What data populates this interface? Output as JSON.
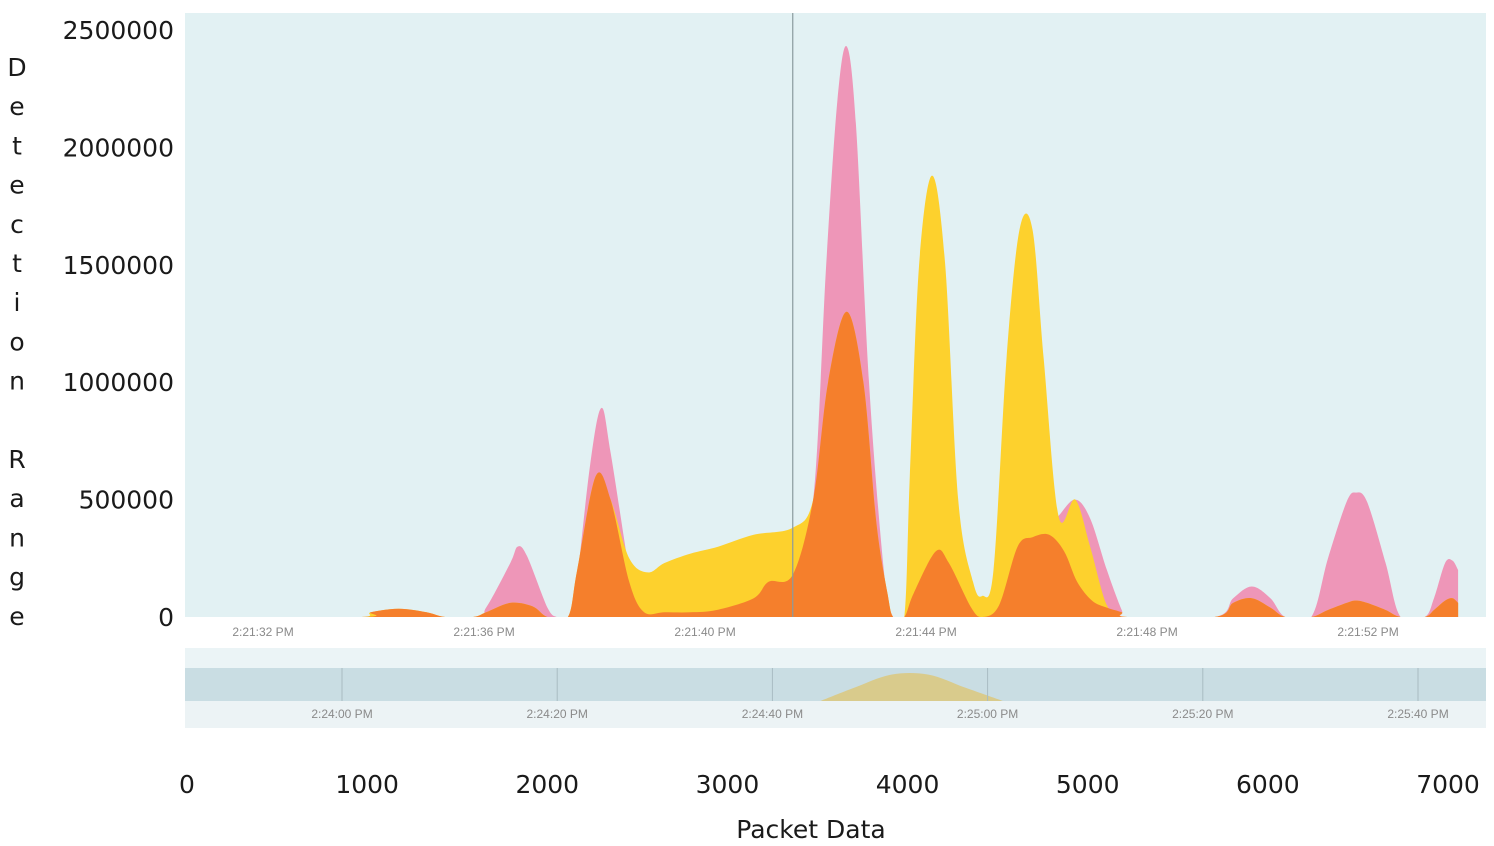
{
  "chart_data": {
    "type": "area",
    "title": "",
    "xlabel": "Packet Data",
    "ylabel": "Detection Range",
    "xlim": [
      0,
      7000
    ],
    "ylim": [
      0,
      2500000
    ],
    "x_ticks": [
      0,
      1000,
      2000,
      3000,
      4000,
      5000,
      6000,
      7000
    ],
    "x_tick_labels": [
      "0",
      "1000",
      "2000",
      "3000",
      "4000",
      "5000",
      "6000",
      "7000"
    ],
    "y_ticks": [
      0,
      500000,
      1000000,
      1500000,
      2000000,
      2500000
    ],
    "y_tick_labels": [
      "0",
      "500000",
      "1000000",
      "1500000",
      "2000000",
      "2500000"
    ],
    "plot_background": "#e2f1f3",
    "time_axis_labels": [
      "2:21:32 PM",
      "2:21:36 PM",
      "2:21:40 PM",
      "2:21:44 PM",
      "2:21:48 PM",
      "2:21:52 PM"
    ],
    "navigator_time_labels": [
      "2:24:00 PM",
      "2:24:20 PM",
      "2:24:40 PM",
      "2:25:00 PM",
      "2:25:20 PM",
      "2:25:40 PM"
    ],
    "cursor_x": 3270,
    "series": [
      {
        "color": "#ee96b8",
        "points": [
          [
            0,
            0
          ],
          [
            950,
            0
          ],
          [
            1550,
            0
          ],
          [
            1620,
            40000
          ],
          [
            1750,
            230000
          ],
          [
            1790,
            300000
          ],
          [
            1840,
            260000
          ],
          [
            1950,
            40000
          ],
          [
            2000,
            0
          ],
          [
            2060,
            0
          ],
          [
            2100,
            100000
          ],
          [
            2180,
            650000
          ],
          [
            2240,
            890000
          ],
          [
            2290,
            700000
          ],
          [
            2400,
            150000
          ],
          [
            2450,
            0
          ],
          [
            2800,
            0
          ],
          [
            2960,
            0
          ],
          [
            3100,
            50000
          ],
          [
            3270,
            180000
          ],
          [
            3380,
            500000
          ],
          [
            3450,
            1500000
          ],
          [
            3510,
            2200000
          ],
          [
            3560,
            2430000
          ],
          [
            3610,
            2100000
          ],
          [
            3680,
            1000000
          ],
          [
            3760,
            200000
          ],
          [
            3810,
            0
          ],
          [
            3870,
            0
          ],
          [
            3960,
            100000
          ],
          [
            4040,
            280000
          ],
          [
            4110,
            230000
          ],
          [
            4230,
            40000
          ],
          [
            4290,
            0
          ],
          [
            4400,
            100000
          ],
          [
            4510,
            280000
          ],
          [
            4600,
            330000
          ],
          [
            4700,
            430000
          ],
          [
            4790,
            500000
          ],
          [
            4870,
            420000
          ],
          [
            4960,
            200000
          ],
          [
            5040,
            30000
          ],
          [
            5070,
            0
          ],
          [
            5540,
            0
          ],
          [
            5640,
            80000
          ],
          [
            5740,
            130000
          ],
          [
            5840,
            80000
          ],
          [
            5920,
            0
          ],
          [
            6060,
            0
          ],
          [
            6150,
            250000
          ],
          [
            6250,
            490000
          ],
          [
            6300,
            530000
          ],
          [
            6360,
            490000
          ],
          [
            6460,
            230000
          ],
          [
            6540,
            0
          ],
          [
            6670,
            0
          ],
          [
            6720,
            80000
          ],
          [
            6780,
            230000
          ],
          [
            6820,
            240000
          ],
          [
            6850,
            200000
          ]
        ]
      },
      {
        "color": "#fdd12d",
        "points": [
          [
            0,
            0
          ],
          [
            470,
            0
          ],
          [
            950,
            0
          ],
          [
            1000,
            20000
          ],
          [
            1150,
            35000
          ],
          [
            1300,
            20000
          ],
          [
            1400,
            0
          ],
          [
            1550,
            0
          ],
          [
            1620,
            20000
          ],
          [
            1750,
            60000
          ],
          [
            1870,
            45000
          ],
          [
            1950,
            0
          ],
          [
            2060,
            0
          ],
          [
            2110,
            200000
          ],
          [
            2210,
            600000
          ],
          [
            2290,
            500000
          ],
          [
            2390,
            250000
          ],
          [
            2490,
            190000
          ],
          [
            2580,
            230000
          ],
          [
            2720,
            270000
          ],
          [
            2870,
            300000
          ],
          [
            3060,
            350000
          ],
          [
            3270,
            380000
          ],
          [
            3380,
            500000
          ],
          [
            3460,
            1000000
          ],
          [
            3560,
            1300000
          ],
          [
            3650,
            1000000
          ],
          [
            3720,
            400000
          ],
          [
            3780,
            100000
          ],
          [
            3810,
            0
          ],
          [
            3870,
            0
          ],
          [
            3900,
            600000
          ],
          [
            3950,
            1500000
          ],
          [
            4020,
            1880000
          ],
          [
            4090,
            1500000
          ],
          [
            4160,
            500000
          ],
          [
            4240,
            150000
          ],
          [
            4290,
            90000
          ],
          [
            4350,
            200000
          ],
          [
            4420,
            1100000
          ],
          [
            4490,
            1650000
          ],
          [
            4560,
            1650000
          ],
          [
            4620,
            1100000
          ],
          [
            4700,
            430000
          ],
          [
            4790,
            500000
          ],
          [
            4870,
            300000
          ],
          [
            4960,
            50000
          ],
          [
            5040,
            20000
          ],
          [
            5070,
            0
          ],
          [
            5540,
            0
          ],
          [
            5640,
            60000
          ],
          [
            5740,
            80000
          ],
          [
            5840,
            40000
          ],
          [
            5920,
            0
          ],
          [
            6060,
            0
          ],
          [
            6150,
            30000
          ],
          [
            6250,
            60000
          ],
          [
            6300,
            70000
          ],
          [
            6360,
            60000
          ],
          [
            6460,
            30000
          ],
          [
            6540,
            0
          ],
          [
            6670,
            0
          ],
          [
            6720,
            30000
          ],
          [
            6780,
            70000
          ],
          [
            6820,
            80000
          ],
          [
            6850,
            60000
          ]
        ]
      },
      {
        "color": "#f57f2c",
        "points": [
          [
            0,
            0
          ],
          [
            950,
            0
          ],
          [
            1000,
            20000
          ],
          [
            1150,
            35000
          ],
          [
            1300,
            20000
          ],
          [
            1400,
            0
          ],
          [
            1550,
            0
          ],
          [
            1620,
            20000
          ],
          [
            1750,
            60000
          ],
          [
            1870,
            45000
          ],
          [
            1950,
            0
          ],
          [
            2060,
            0
          ],
          [
            2110,
            200000
          ],
          [
            2210,
            600000
          ],
          [
            2290,
            500000
          ],
          [
            2390,
            150000
          ],
          [
            2470,
            20000
          ],
          [
            2580,
            20000
          ],
          [
            2720,
            20000
          ],
          [
            2860,
            30000
          ],
          [
            3060,
            80000
          ],
          [
            3140,
            150000
          ],
          [
            3270,
            180000
          ],
          [
            3380,
            500000
          ],
          [
            3460,
            1000000
          ],
          [
            3560,
            1300000
          ],
          [
            3650,
            1000000
          ],
          [
            3720,
            400000
          ],
          [
            3780,
            100000
          ],
          [
            3810,
            0
          ],
          [
            3870,
            0
          ],
          [
            3920,
            100000
          ],
          [
            4040,
            280000
          ],
          [
            4110,
            230000
          ],
          [
            4230,
            40000
          ],
          [
            4290,
            0
          ],
          [
            4380,
            50000
          ],
          [
            4480,
            300000
          ],
          [
            4560,
            340000
          ],
          [
            4650,
            350000
          ],
          [
            4730,
            280000
          ],
          [
            4800,
            150000
          ],
          [
            4880,
            70000
          ],
          [
            4960,
            40000
          ],
          [
            5040,
            20000
          ],
          [
            5070,
            0
          ],
          [
            5540,
            0
          ],
          [
            5640,
            60000
          ],
          [
            5740,
            80000
          ],
          [
            5840,
            40000
          ],
          [
            5920,
            0
          ],
          [
            6060,
            0
          ],
          [
            6150,
            30000
          ],
          [
            6250,
            60000
          ],
          [
            6300,
            70000
          ],
          [
            6360,
            60000
          ],
          [
            6460,
            30000
          ],
          [
            6540,
            0
          ],
          [
            6670,
            0
          ],
          [
            6720,
            30000
          ],
          [
            6780,
            70000
          ],
          [
            6820,
            80000
          ],
          [
            6850,
            60000
          ]
        ]
      }
    ],
    "navigator_series": {
      "color": "#dcc87c",
      "points": [
        [
          3420,
          0
        ],
        [
          3600,
          40000
        ],
        [
          3800,
          80000
        ],
        [
          4000,
          80000
        ],
        [
          4200,
          40000
        ],
        [
          4400,
          0
        ]
      ]
    }
  }
}
